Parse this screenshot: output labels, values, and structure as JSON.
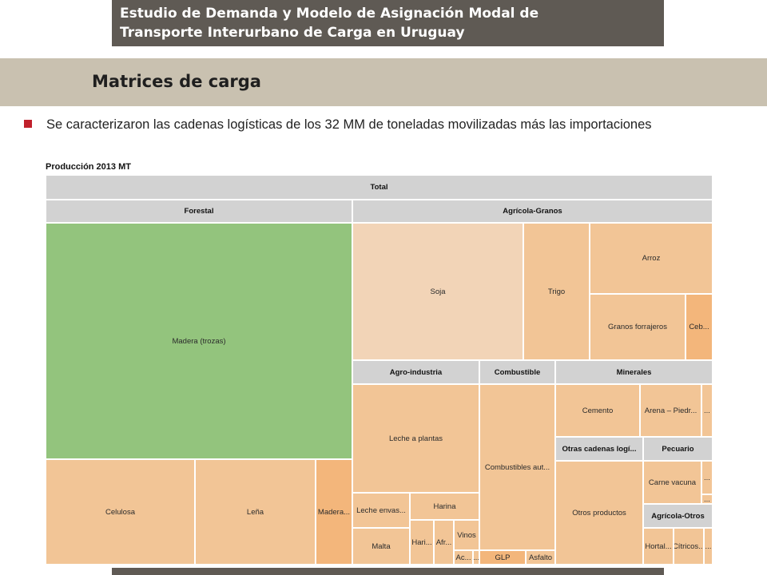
{
  "header": {
    "title_line1": "Estudio de Demanda y Modelo de Asignación Modal de",
    "title_line2": "Transporte Interurbano de Carga en Uruguay"
  },
  "section_title": "Matrices de carga",
  "bullet_text": "Se caracterizaron las cadenas logísticas de los 32 MM de toneladas movilizadas más las importaciones",
  "treemap": {
    "title": "Producción 2013 MT",
    "colors": {
      "forestal_madera": "#93c47d",
      "tan_light": "#f2d4b7",
      "tan": "#f2c596",
      "tan_dark": "#f3b67b",
      "header": "#d2d2d2",
      "bullet": "#c0202b",
      "title_box": "#5f5a54",
      "band": "#c9c1b0"
    },
    "labels": {
      "total": "Total",
      "forestal": "Forestal",
      "agricola_granos": "Agrícola-Granos",
      "madera_trozas": "Madera (trozas)",
      "celulosa": "Celulosa",
      "lena": "Leña",
      "madera_small": "Madera...",
      "soja": "Soja",
      "trigo": "Trigo",
      "arroz": "Arroz",
      "granos_forrajeros": "Granos forrajeros",
      "ceb": "Ceb...",
      "agro_industria": "Agro-industria",
      "combustible": "Combustible",
      "minerales": "Minerales",
      "leche_plantas": "Leche a plantas",
      "leche_envas": "Leche envas...",
      "harina": "Harina",
      "malta": "Malta",
      "hari": "Hari...",
      "afr": "Afr...",
      "vinos": "Vinos",
      "ac": "Ac...",
      "dots": "...",
      "combustibles_aut": "Combustibles aut...",
      "glp": "GLP",
      "asfalto": "Asfalto",
      "cemento": "Cemento",
      "arena_piedr": "Arena – Piedr...",
      "otras_cadenas": "Otras cadenas logí...",
      "pecuario": "Pecuario",
      "otros_productos": "Otros productos",
      "carne_vacuna": "Carne vacuna",
      "agricola_otros": "Agrícola-Otros",
      "hortal": "Hortal...",
      "citricos": "Cítricos..."
    }
  }
}
